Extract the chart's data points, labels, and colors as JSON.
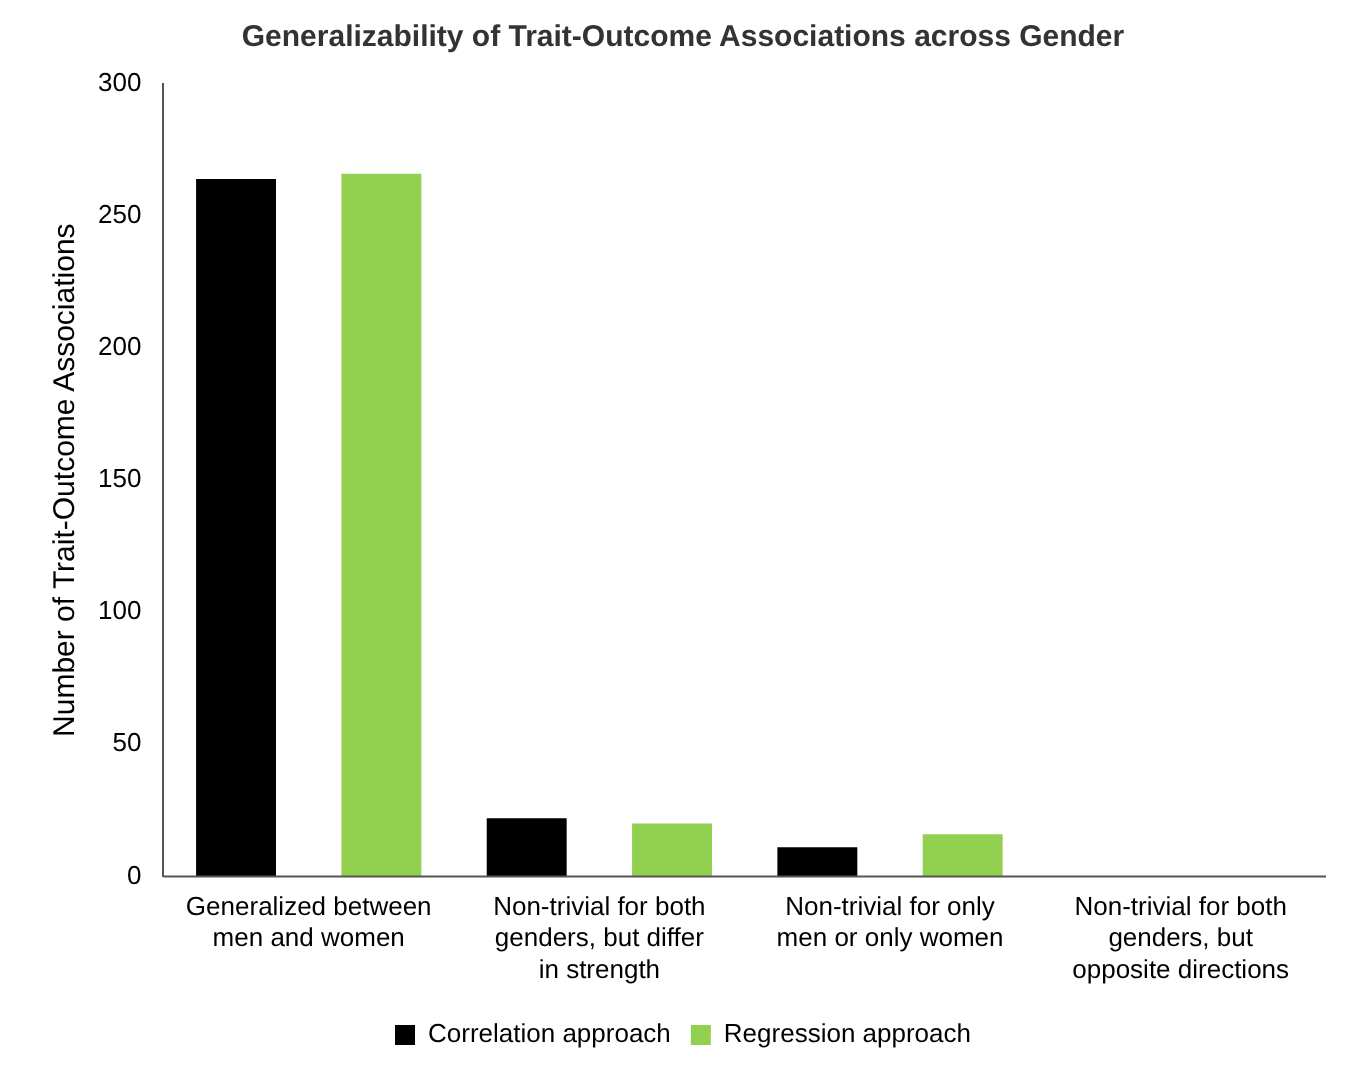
{
  "chart_data": {
    "type": "bar",
    "title": "Generalizability of Trait-Outcome Associations across Gender",
    "ylabel": "Number of Trait-Outcome Associations",
    "categories": [
      "Generalized between men and women",
      "Non-trivial for both genders, but differ in strength",
      "Non-trivial for only men or only women",
      "Non-trivial for both genders, but opposite directions"
    ],
    "series": [
      {
        "name": "Correlation approach",
        "color": "#000000",
        "values": [
          264,
          22,
          11,
          0
        ]
      },
      {
        "name": "Regression approach",
        "color": "#92d050",
        "values": [
          266,
          20,
          16,
          0
        ]
      }
    ],
    "ylim": [
      0,
      300
    ],
    "yticks": [
      0,
      50,
      100,
      150,
      200,
      250,
      300
    ],
    "grid": false,
    "legend": "bottom"
  }
}
